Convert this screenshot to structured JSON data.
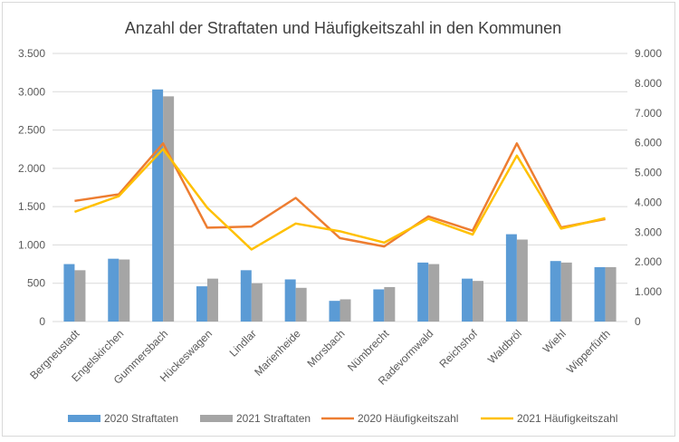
{
  "chart_data": {
    "type": "bar",
    "title": "Anzahl der Straftaten und Häufigkeitszahl in den Kommunen",
    "categories": [
      "Bergneustadt",
      "Engelskirchen",
      "Gummersbach",
      "Hückeswagen",
      "Lindlar",
      "Marienheide",
      "Morsbach",
      "Nümbrecht",
      "Radevormwald",
      "Reichshof",
      "Waldbröl",
      "Wiehl",
      "Wipperfürth"
    ],
    "y_left": {
      "range": [
        0,
        3500
      ],
      "ticks": [
        0,
        500,
        1000,
        1500,
        2000,
        2500,
        3000,
        3500
      ],
      "tick_labels": [
        "0",
        "500",
        "1.000",
        "1.500",
        "2.000",
        "2.500",
        "3.000",
        "3.500"
      ]
    },
    "y_right": {
      "range": [
        0,
        9000
      ],
      "ticks": [
        0,
        1000,
        2000,
        3000,
        4000,
        5000,
        6000,
        7000,
        8000,
        9000
      ],
      "tick_labels": [
        "0",
        "1.000",
        "2.000",
        "3.000",
        "4.000",
        "5.000",
        "6.000",
        "7.000",
        "8.000",
        "9.000"
      ]
    },
    "grid": true,
    "legend_position": "bottom",
    "bar_series": [
      {
        "name": "2020 Straftaten",
        "color": "#5b9bd5",
        "axis": "left",
        "values": [
          750,
          820,
          3030,
          460,
          670,
          550,
          270,
          420,
          770,
          560,
          1140,
          790,
          710
        ]
      },
      {
        "name": "2021 Straftaten",
        "color": "#a5a5a5",
        "axis": "left",
        "values": [
          670,
          810,
          2940,
          560,
          500,
          440,
          290,
          450,
          750,
          530,
          1070,
          770,
          710
        ]
      }
    ],
    "line_series": [
      {
        "name": "2020 Häufigkeitszahl",
        "color": "#ed7d31",
        "axis": "right",
        "values": [
          4050,
          4270,
          5980,
          3150,
          3190,
          4150,
          2800,
          2520,
          3530,
          3050,
          5980,
          3160,
          3440
        ]
      },
      {
        "name": "2021 Häufigkeitszahl",
        "color": "#ffc000",
        "axis": "right",
        "values": [
          3680,
          4210,
          5790,
          3820,
          2420,
          3290,
          3030,
          2650,
          3450,
          2920,
          5570,
          3120,
          3470
        ]
      }
    ]
  }
}
